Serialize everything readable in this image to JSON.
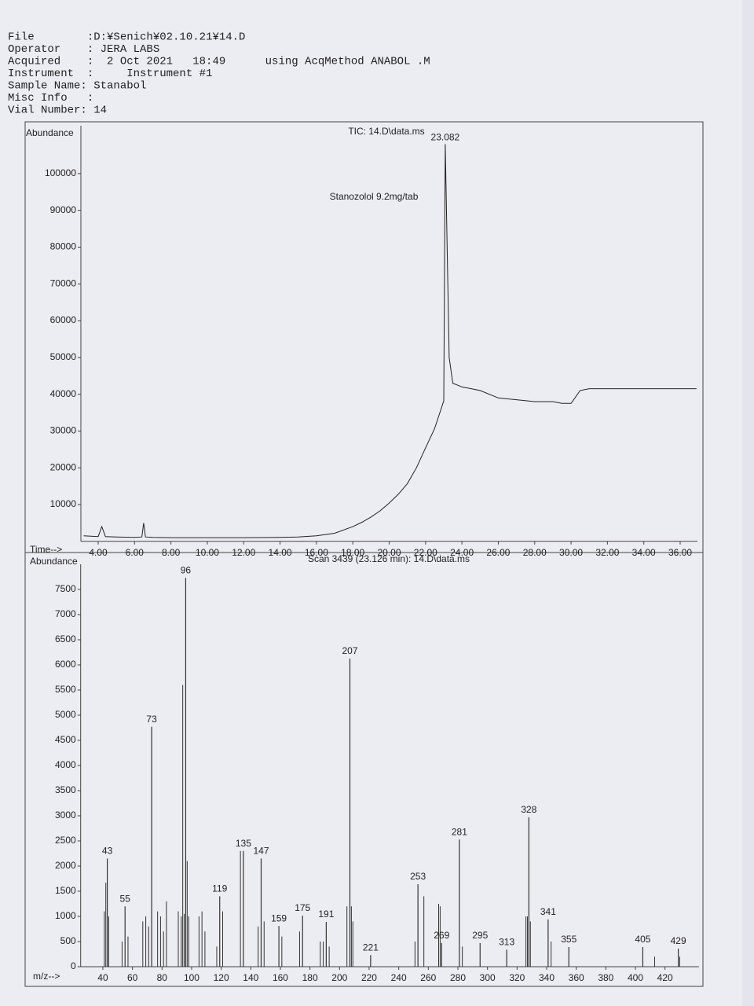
{
  "header": {
    "lines": [
      "File        :D:¥Senich¥02.10.21¥14.D",
      "Operator    : JERA LABS",
      "Acquired    :  2 Oct 2021   18:49      using AcqMethod ANABOL .M",
      "Instrument  :     Instrument #1",
      "Sample Name: Stanabol",
      "Misc Info   :",
      "Vial Number: 14"
    ]
  },
  "chart_data": [
    {
      "type": "line",
      "title": "TIC: 14.D\\data.ms",
      "y_label": "Abundance",
      "x_label": "Time-->",
      "annotation": "Stanozolol 9.2mg/tab",
      "peak_label": "23.082",
      "color": "#222",
      "x": [
        3.2,
        4.0,
        4.2,
        4.4,
        5,
        6,
        6.4,
        6.5,
        6.6,
        7,
        8,
        10,
        12,
        14,
        15,
        16,
        17,
        18,
        18.5,
        19,
        19.5,
        20,
        20.5,
        21,
        21.5,
        22,
        22.5,
        23,
        23.082,
        23.3,
        23.5,
        24,
        25,
        26,
        27,
        28,
        29,
        29.5,
        30,
        30.5,
        31,
        32,
        33,
        34,
        35,
        36,
        36.9
      ],
      "values": [
        1500,
        1300,
        4000,
        1300,
        1200,
        1100,
        1200,
        5000,
        1200,
        1100,
        1000,
        1000,
        1000,
        1100,
        1200,
        1500,
        2200,
        4000,
        5200,
        6600,
        8300,
        10400,
        12800,
        15700,
        20000,
        25400,
        30700,
        38200,
        108000,
        50000,
        43000,
        42000,
        41000,
        39000,
        38500,
        38000,
        38000,
        37500,
        37500,
        41000,
        41500,
        41500,
        41500,
        41500,
        41500,
        41500,
        41500
      ],
      "xlim": [
        3.05,
        36.95
      ],
      "ylim": [
        0,
        113000
      ],
      "xticks": [
        {
          "value": 4,
          "label": "4.00"
        },
        {
          "value": 6,
          "label": "6.00"
        },
        {
          "value": 8,
          "label": "8.00"
        },
        {
          "value": 10,
          "label": "10.00"
        },
        {
          "value": 12,
          "label": "12.00"
        },
        {
          "value": 14,
          "label": "14.00"
        },
        {
          "value": 16,
          "label": "16.00"
        },
        {
          "value": 18,
          "label": "18.00"
        },
        {
          "value": 20,
          "label": "20.00"
        },
        {
          "value": 22,
          "label": "22.00"
        },
        {
          "value": 24,
          "label": "24.00"
        },
        {
          "value": 26,
          "label": "26.00"
        },
        {
          "value": 28,
          "label": "28.00"
        },
        {
          "value": 30,
          "label": "30.00"
        },
        {
          "value": 32,
          "label": "32.00"
        },
        {
          "value": 34,
          "label": "34.00"
        },
        {
          "value": 36,
          "label": "36.00"
        }
      ],
      "yticks": [
        10000,
        20000,
        30000,
        40000,
        50000,
        60000,
        70000,
        80000,
        90000,
        100000
      ]
    },
    {
      "type": "spectrum",
      "title": "Scan 3439 (23.126 min): 14.D\\data.ms",
      "y_label": "Abundance",
      "x_label": "m/z-->",
      "color": "#333",
      "x": [
        43,
        55,
        73,
        96,
        119,
        135,
        147,
        159,
        175,
        191,
        207,
        221,
        253,
        269,
        281,
        295,
        313,
        328,
        341,
        355,
        405,
        429
      ],
      "values": [
        2150,
        1200,
        4770,
        7730,
        1400,
        2300,
        2150,
        810,
        1015,
        890,
        6125,
        230,
        1640,
        470,
        2530,
        470,
        340,
        2970,
        940,
        390,
        390,
        360
      ],
      "minor_x": [
        41,
        42,
        44,
        53,
        57,
        67,
        69,
        71,
        77,
        79,
        81,
        83,
        91,
        93,
        94,
        95,
        97,
        98,
        105,
        107,
        109,
        117,
        121,
        133,
        145,
        149,
        161,
        173,
        187,
        189,
        193,
        205,
        208,
        209,
        251,
        257,
        267,
        268,
        283,
        326,
        327,
        329,
        343,
        413,
        430
      ],
      "minor_values": [
        1100,
        1670,
        1000,
        500,
        600,
        900,
        1000,
        800,
        1100,
        1000,
        700,
        1300,
        1100,
        1000,
        5600,
        1050,
        2100,
        1000,
        1000,
        1100,
        700,
        400,
        1100,
        2300,
        800,
        900,
        600,
        700,
        500,
        500,
        400,
        1200,
        1200,
        900,
        500,
        1400,
        1250,
        1200,
        400,
        1000,
        1000,
        900,
        500,
        200,
        200
      ],
      "xlim": [
        25,
        443
      ],
      "ylim": [
        0,
        8000
      ],
      "xticks": [
        40,
        60,
        80,
        100,
        120,
        140,
        160,
        180,
        200,
        220,
        240,
        260,
        280,
        300,
        320,
        340,
        360,
        380,
        400,
        420
      ],
      "yticks": [
        0,
        500,
        1000,
        1500,
        2000,
        2500,
        3000,
        3500,
        4000,
        4500,
        5000,
        5500,
        6000,
        6500,
        7000,
        7500
      ]
    }
  ]
}
